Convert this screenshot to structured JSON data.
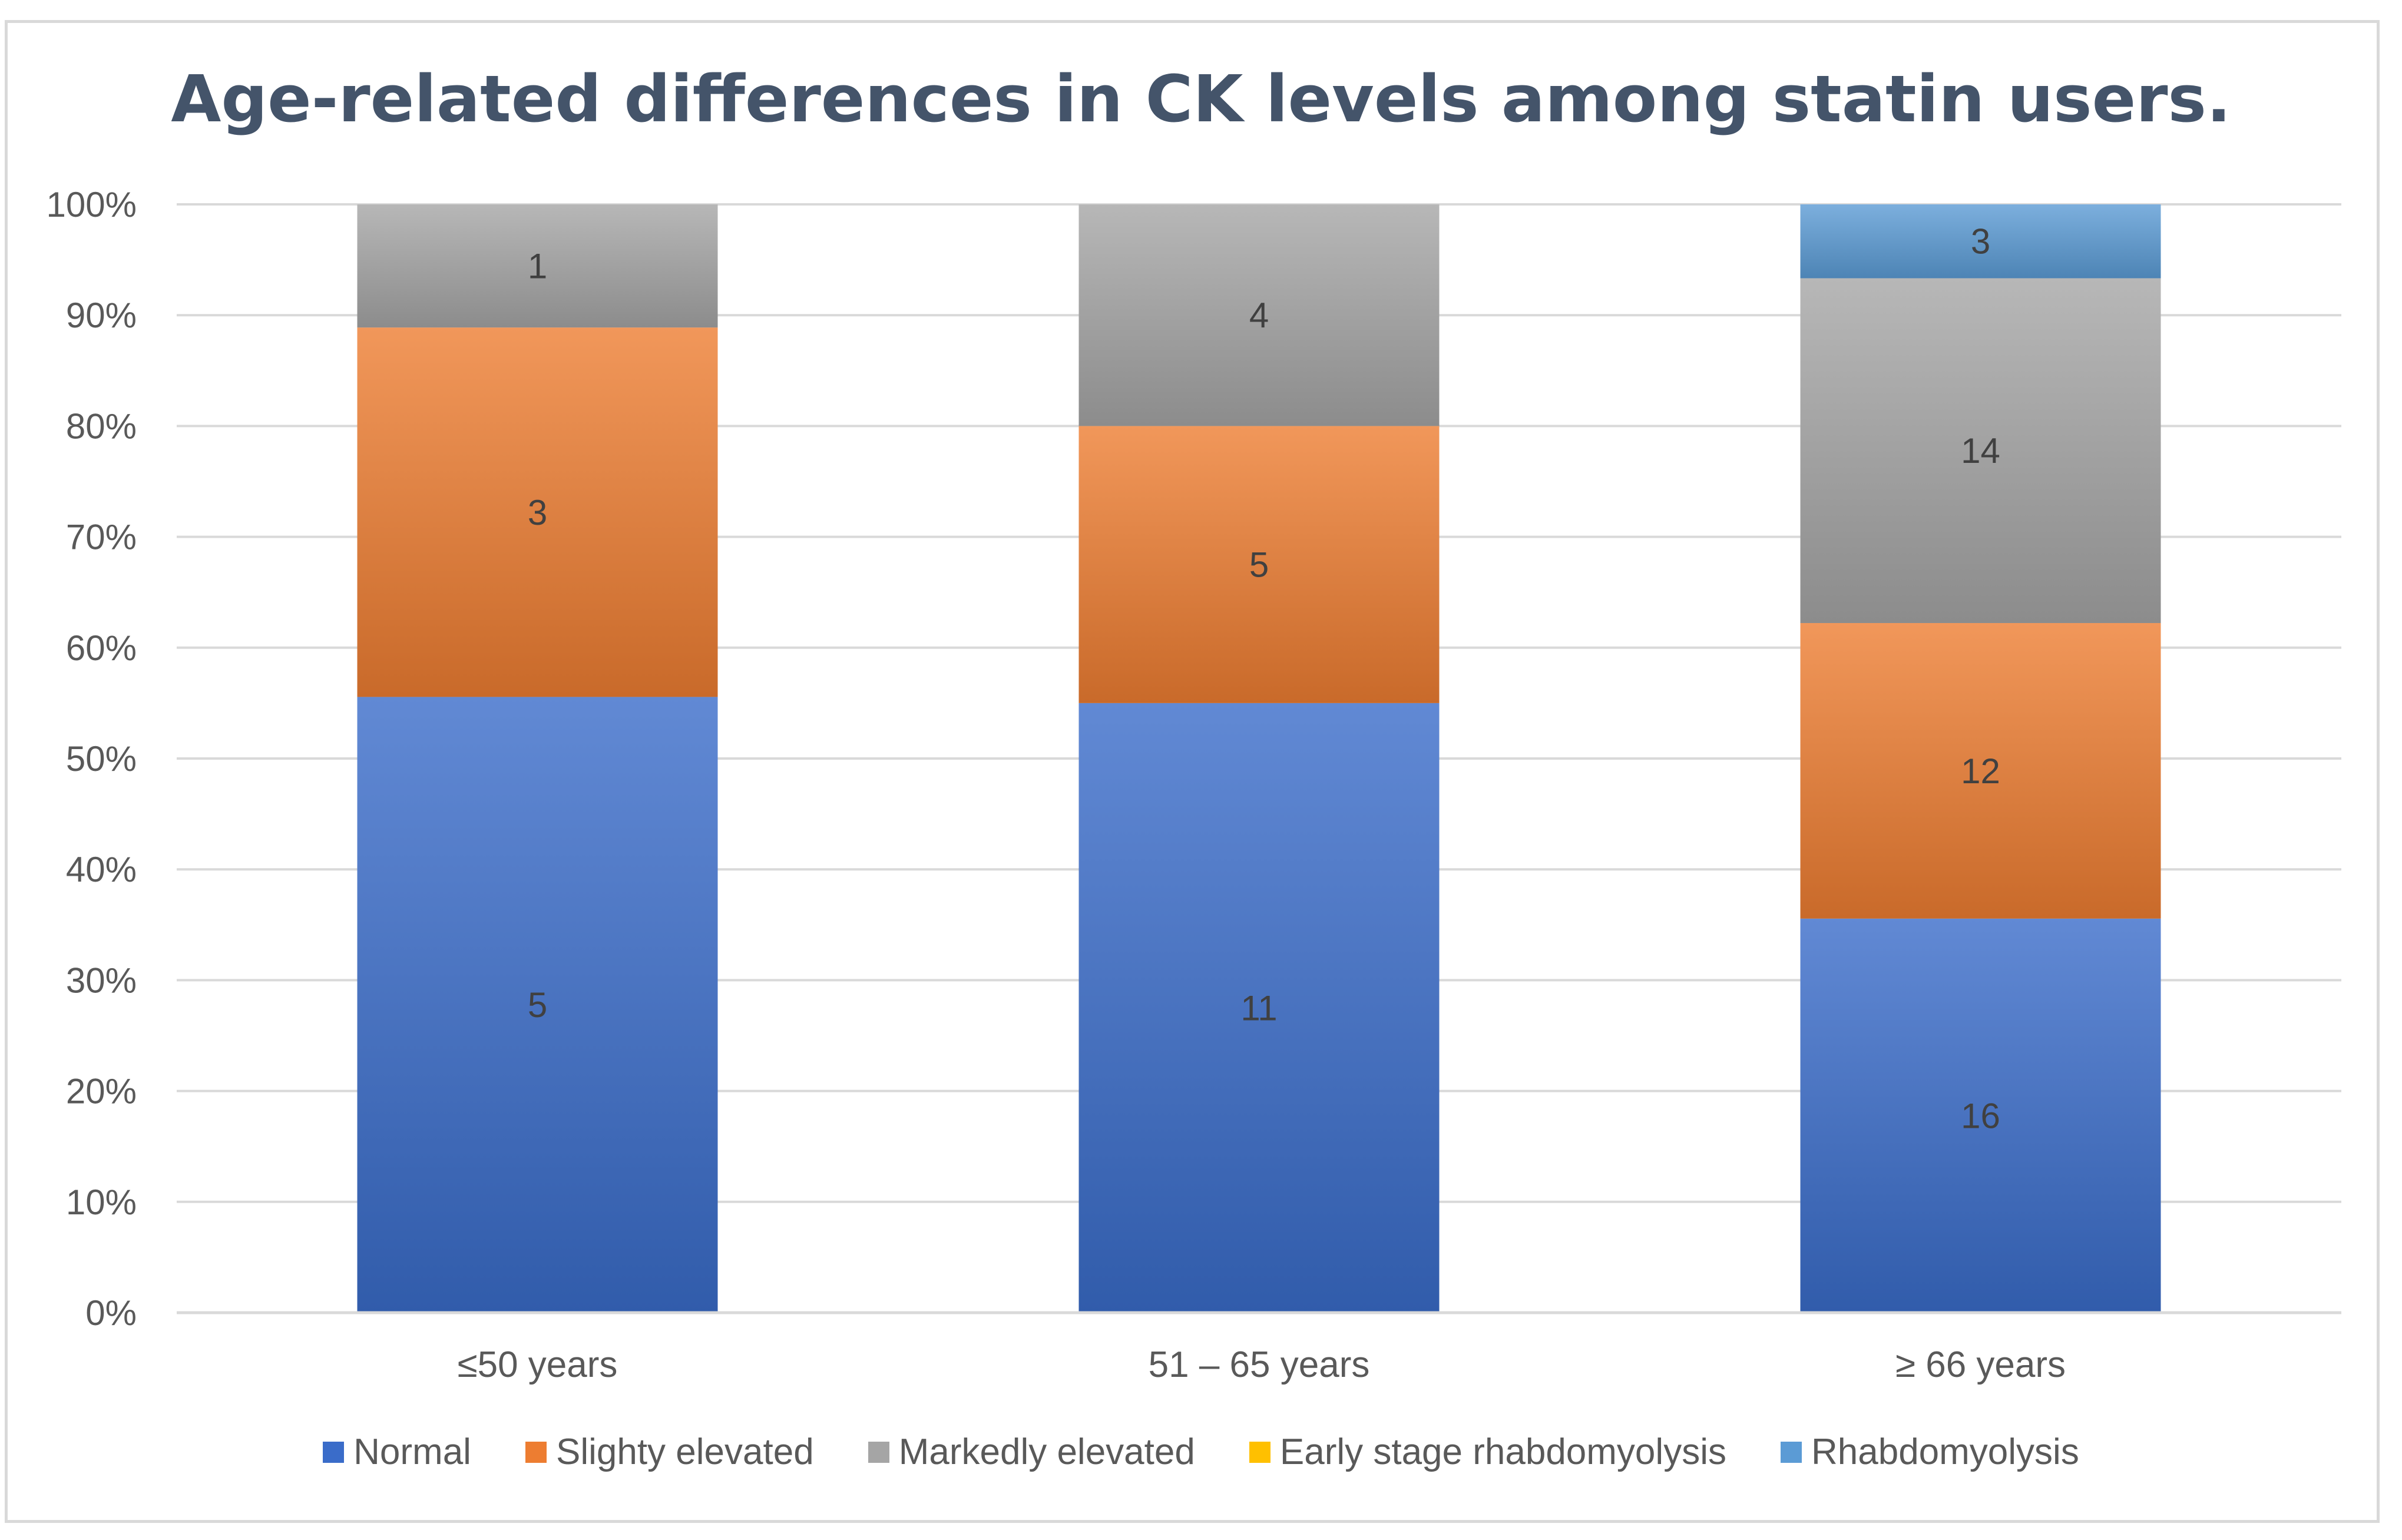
{
  "chart_data": {
    "type": "bar",
    "stacked": "percent",
    "title": "Age-related differences in CK levels among statin users.",
    "xlabel": "",
    "ylabel": "",
    "categories": [
      "≤50 years",
      "51 – 65 years",
      "≥ 66 years"
    ],
    "ylim": [
      0,
      100
    ],
    "y_ticks": [
      "0%",
      "10%",
      "20%",
      "30%",
      "40%",
      "50%",
      "60%",
      "70%",
      "80%",
      "90%",
      "100%"
    ],
    "grid": true,
    "legend_position": "bottom",
    "series": [
      {
        "name": "Normal",
        "values": [
          5,
          11,
          16
        ],
        "color": "#3a6cc9"
      },
      {
        "name": "Slighty elevated",
        "values": [
          3,
          5,
          12
        ],
        "color": "#ed7d31"
      },
      {
        "name": "Markedly elevated",
        "values": [
          1,
          4,
          14
        ],
        "color": "#a5a5a5"
      },
      {
        "name": "Early stage rhabdomyolysis",
        "values": [
          0,
          0,
          0
        ],
        "color": "#ffc000"
      },
      {
        "name": "Rhabdomyolysis",
        "values": [
          0,
          0,
          3
        ],
        "color": "#5b9bd5"
      }
    ]
  }
}
